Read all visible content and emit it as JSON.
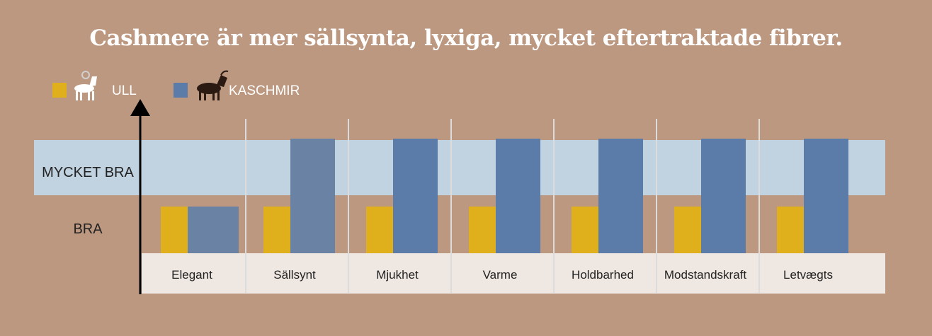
{
  "colors": {
    "background": "#bd9880",
    "band": "#c1d2e1",
    "axis_strip": "#efe7e1",
    "ull": "#e0af1c",
    "kaschmir": "#5b7ca8",
    "kaschmir_muted": "#6a82a3",
    "divider": "#dcdcdc",
    "axis": "#000000",
    "text": "#222222"
  },
  "legend": {
    "ull": {
      "label": "ULL",
      "icon": "white-goat-icon"
    },
    "kaschmir": {
      "label": "KASCHMIR",
      "icon": "black-goat-icon"
    }
  },
  "chart_data": {
    "type": "bar",
    "title": "Cashmere är mer sällsynta, lyxiga, mycket eftertraktade fibrer.",
    "categories": [
      "Elegant",
      "Sällsynt",
      "Mjukhet",
      "Varme",
      "Holdbarhed",
      "Modstandskraft",
      "Letvægts"
    ],
    "y_levels": [
      "BRA",
      "MYCKET BRA"
    ],
    "ylim": [
      0,
      2
    ],
    "series": [
      {
        "name": "ULL",
        "values": [
          1,
          1,
          1,
          1,
          1,
          1,
          1
        ]
      },
      {
        "name": "KASCHMIR",
        "values": [
          1,
          2,
          2,
          2,
          2,
          2,
          2
        ]
      }
    ],
    "legend_position": "top-left",
    "grid": false
  }
}
